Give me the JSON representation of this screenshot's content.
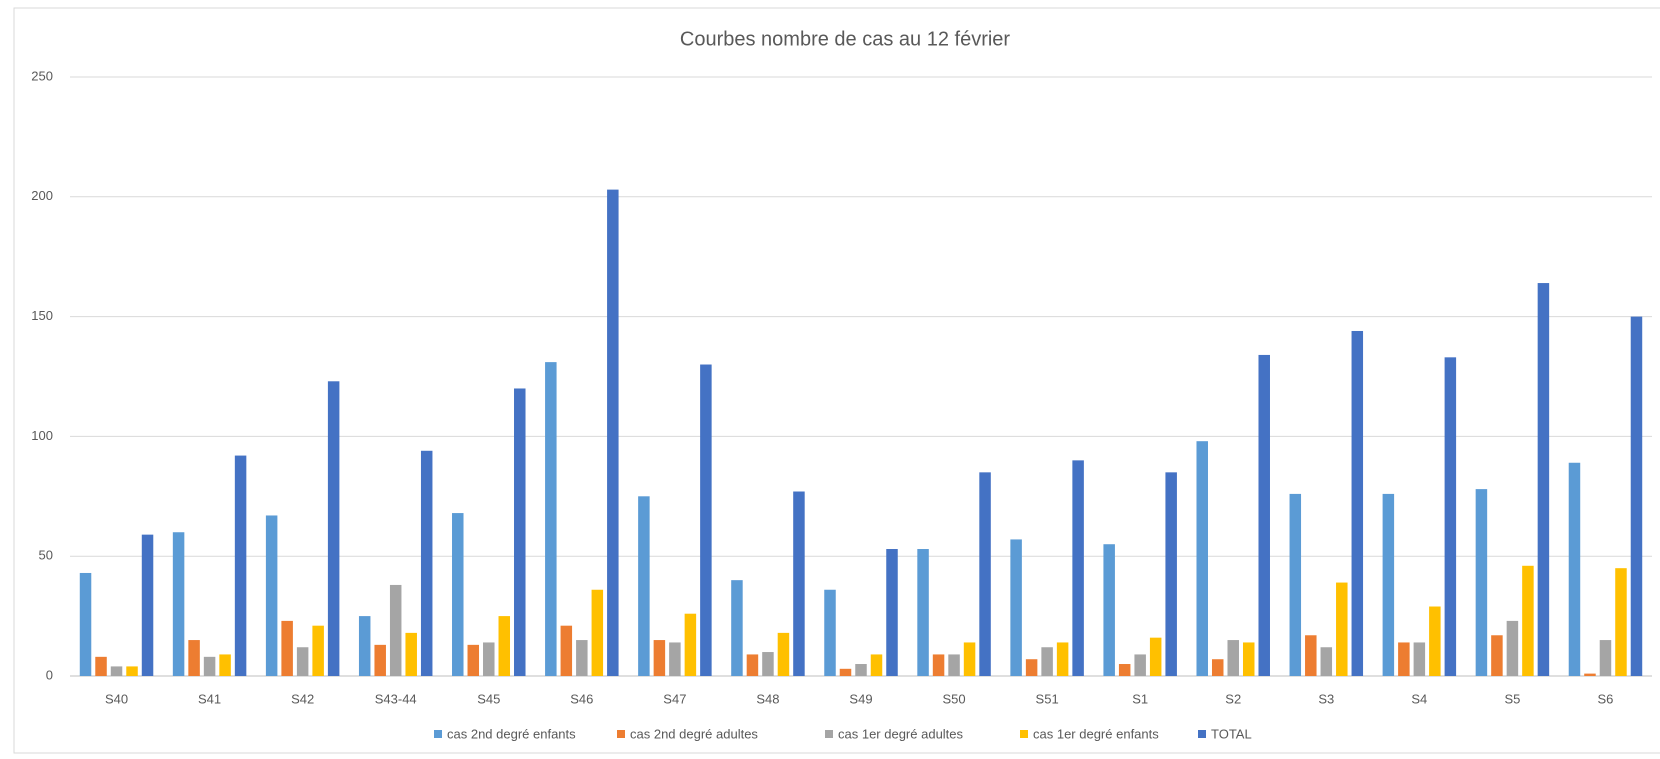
{
  "chart_data": {
    "type": "bar",
    "title": "Courbes nombre de cas au 12 février",
    "categories": [
      "S40",
      "S41",
      "S42",
      "S43-44",
      "S45",
      "S46",
      "S47",
      "S48",
      "S49",
      "S50",
      "S51",
      "S1",
      "S2",
      "S3",
      "S4",
      "S5",
      "S6"
    ],
    "series": [
      {
        "name": "cas 2nd degré enfants",
        "color": "#5b9bd5",
        "values": [
          43,
          60,
          67,
          25,
          68,
          131,
          75,
          40,
          36,
          53,
          57,
          55,
          98,
          76,
          76,
          78,
          89
        ]
      },
      {
        "name": "cas 2nd degré adultes",
        "color": "#ed7d31",
        "values": [
          8,
          15,
          23,
          13,
          13,
          21,
          15,
          9,
          3,
          9,
          7,
          5,
          7,
          17,
          14,
          17,
          1
        ]
      },
      {
        "name": "cas 1er degré  adultes",
        "color": "#a5a5a5",
        "values": [
          4,
          8,
          12,
          38,
          14,
          15,
          14,
          10,
          5,
          9,
          12,
          9,
          15,
          12,
          14,
          23,
          15
        ]
      },
      {
        "name": "cas 1er degré enfants",
        "color": "#ffc000",
        "values": [
          4,
          9,
          21,
          18,
          25,
          36,
          26,
          18,
          9,
          14,
          14,
          16,
          14,
          39,
          29,
          46,
          45
        ]
      },
      {
        "name": "TOTAL",
        "color": "#4472c4",
        "values": [
          59,
          92,
          123,
          94,
          120,
          203,
          130,
          77,
          53,
          85,
          90,
          85,
          134,
          144,
          133,
          164,
          150
        ]
      }
    ],
    "ylim": [
      0,
      250
    ],
    "yticks": [
      0,
      50,
      100,
      150,
      200,
      250
    ],
    "grid": true,
    "legend": "bottom"
  }
}
